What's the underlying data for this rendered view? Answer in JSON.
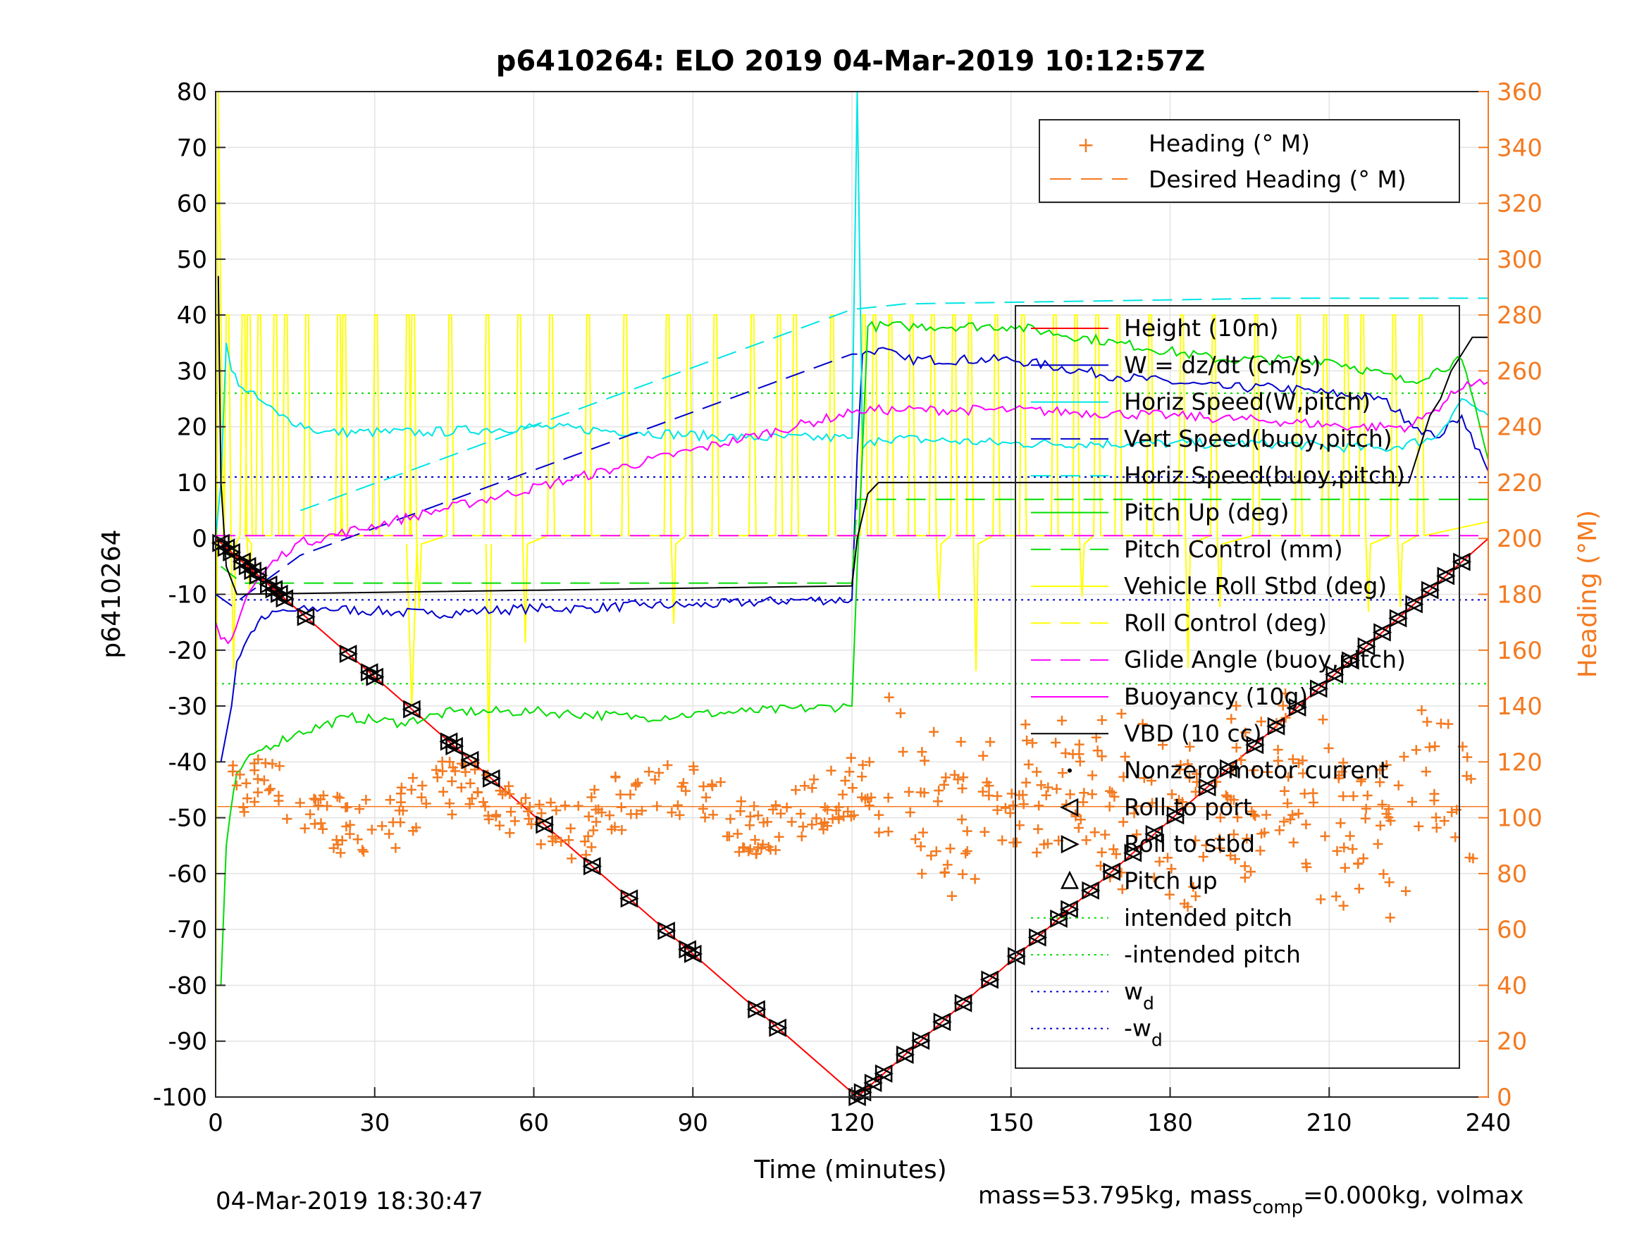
{
  "chart_data": {
    "type": "line",
    "title": "p6410264: ELO 2019 04-Mar-2019 10:12:57Z",
    "xlabel": "Time (minutes)",
    "ylabel": "p6410264",
    "ylabel_right": "Heading (°M)",
    "xlim": [
      0,
      240
    ],
    "ylim": [
      -100,
      80
    ],
    "ylim_right": [
      0,
      360
    ],
    "xticks": [
      "0",
      "30",
      "60",
      "90",
      "120",
      "150",
      "180",
      "210",
      "240"
    ],
    "yticks": [
      "80",
      "70",
      "60",
      "50",
      "40",
      "30",
      "20",
      "10",
      "0",
      "-10",
      "-20",
      "-30",
      "-40",
      "-50",
      "-60",
      "-70",
      "-80",
      "-90",
      "-100"
    ],
    "yticks_right": [
      "360",
      "340",
      "320",
      "300",
      "280",
      "260",
      "240",
      "220",
      "200",
      "180",
      "160",
      "140",
      "120",
      "100",
      "80",
      "60",
      "40",
      "20",
      "0"
    ],
    "grid": true,
    "footer_left": "04-Mar-2019 18:30:47",
    "footer_right": "mass=53.795kg, mass",
    "footer_right_sub": "comp",
    "footer_right_tail": "=0.000kg, volmax",
    "legend_heading": [
      {
        "name": "Heading (° M)",
        "color": "#f47a20",
        "style": "plus"
      },
      {
        "name": "Desired Heading (° M)",
        "color": "#f47a20",
        "style": "dashed"
      }
    ],
    "legend_main": [
      {
        "name": "Height (10m)",
        "color": "#ff0000",
        "style": "solid"
      },
      {
        "name": "W = dz/dt (cm/s)",
        "color": "#0000cc",
        "style": "solid"
      },
      {
        "name": "Horiz Speed(W,pitch)",
        "color": "#00e5e5",
        "style": "solid"
      },
      {
        "name": "Vert Speed(buoy,pitch)",
        "color": "#0000cc",
        "style": "dashed"
      },
      {
        "name": "Horiz Speed(buoy,pitch)",
        "color": "#00e5e5",
        "style": "dashed"
      },
      {
        "name": "Pitch Up (deg)",
        "color": "#00dd00",
        "style": "solid"
      },
      {
        "name": "Pitch Control (mm)",
        "color": "#00dd00",
        "style": "dashed"
      },
      {
        "name": "Vehicle Roll Stbd (deg)",
        "color": "#ffff00",
        "style": "solid"
      },
      {
        "name": "Roll Control (deg)",
        "color": "#ffff00",
        "style": "dashed"
      },
      {
        "name": "Glide Angle (buoy,pitch)",
        "color": "#ff00ff",
        "style": "dashed"
      },
      {
        "name": "Buoyancy (10g)",
        "color": "#ff00ff",
        "style": "solid"
      },
      {
        "name": "VBD (10 cc)",
        "color": "#000000",
        "style": "solid"
      },
      {
        "name": "Nonzero motor current",
        "color": "#000000",
        "style": "dot"
      },
      {
        "name": "Roll to port",
        "color": "#000000",
        "style": "tri-left"
      },
      {
        "name": "Roll to stbd",
        "color": "#000000",
        "style": "tri-right"
      },
      {
        "name": "Pitch up",
        "color": "#000000",
        "style": "tri-up"
      },
      {
        "name": "intended pitch",
        "color": "#00dd00",
        "style": "dotted"
      },
      {
        "name": "-intended pitch",
        "color": "#00dd00",
        "style": "dotted"
      },
      {
        "name": "w",
        "sub": "d",
        "color": "#0000cc",
        "style": "dotted"
      },
      {
        "name": "-w",
        "sub": "d",
        "color": "#0000cc",
        "style": "dotted"
      }
    ],
    "reference_lines": {
      "intended_pitch": 26,
      "w_d": 11,
      "desired_heading": 104
    },
    "series": [
      {
        "name": "Height (10m)",
        "color": "#ff0000",
        "x": [
          0,
          121,
          240
        ],
        "y": [
          0,
          -100,
          0
        ]
      },
      {
        "name": "W = dz/dt (cm/s)",
        "color": "#0000cc",
        "x": [
          1,
          2,
          3,
          4,
          6,
          8,
          10,
          12,
          15,
          20,
          30,
          40,
          50,
          60,
          70,
          80,
          90,
          100,
          110,
          120,
          121,
          122,
          125,
          130,
          150,
          170,
          190,
          200,
          210,
          220,
          225,
          230,
          235,
          240
        ],
        "y": [
          -40,
          -35,
          -30,
          -22,
          -18,
          -15,
          -14,
          -13,
          -13,
          -12.5,
          -13,
          -13.5,
          -13,
          -12.5,
          -12.5,
          -12,
          -12,
          -11.5,
          -11,
          -11,
          15,
          33,
          34,
          32,
          32,
          29,
          27,
          27,
          26,
          25,
          21,
          18,
          22,
          12
        ]
      },
      {
        "name": "Horiz Speed(W,pitch)",
        "color": "#00e5e5",
        "x": [
          0,
          1,
          2,
          3,
          5,
          8,
          12,
          20,
          40,
          60,
          80,
          100,
          120,
          121,
          122,
          125,
          150,
          180,
          200,
          220,
          230,
          235,
          240
        ],
        "y": [
          0,
          10,
          35,
          30,
          27,
          25,
          22,
          19,
          19,
          20,
          19,
          18,
          18,
          80,
          16,
          18,
          17,
          17,
          17,
          16,
          18,
          25,
          22
        ]
      },
      {
        "name": "Vert Speed(buoy,pitch)",
        "color": "#0000cc",
        "x": [
          0,
          3,
          16,
          120,
          121
        ],
        "y": [
          -10,
          -12,
          -3,
          33,
          33
        ]
      },
      {
        "name": "Horiz Speed(buoy,pitch)",
        "color": "#00e5e5",
        "x": [
          16,
          120,
          130,
          200,
          240
        ],
        "y": [
          5,
          41,
          42,
          43,
          43
        ]
      },
      {
        "name": "Pitch Up (deg)",
        "color": "#00dd00",
        "x": [
          1,
          2,
          4,
          8,
          15,
          25,
          35,
          45,
          60,
          80,
          100,
          120,
          121,
          123,
          130,
          150,
          170,
          190,
          210,
          225,
          235,
          240
        ],
        "y": [
          -80,
          -55,
          -42,
          -38,
          -35,
          -32,
          -33,
          -31,
          -31,
          -32,
          -31,
          -30,
          -5,
          38,
          38,
          38,
          35,
          32,
          32,
          28,
          32,
          14
        ]
      },
      {
        "name": "Pitch Control (mm)",
        "color": "#00dd00",
        "x": [
          1,
          5,
          40,
          120,
          121,
          125,
          240
        ],
        "y": [
          -5,
          -8,
          -8,
          -8,
          7,
          7,
          7
        ]
      },
      {
        "name": "Glide Angle (buoy,pitch)",
        "color": "#ff00ff",
        "x": [
          0,
          240
        ],
        "y": [
          0.5,
          0.5
        ]
      },
      {
        "name": "Buoyancy (10g)",
        "color": "#ff00ff",
        "x": [
          0,
          1,
          3,
          6,
          10,
          15,
          120,
          121,
          130,
          150,
          180,
          200,
          215,
          225,
          230,
          236,
          240
        ],
        "y": [
          -15,
          -18,
          -18,
          -10,
          -5,
          -1,
          22.5,
          23,
          23,
          23,
          22,
          21,
          20,
          20,
          23,
          28,
          28
        ]
      },
      {
        "name": "VBD (10 cc)",
        "color": "#000000",
        "x": [
          0.5,
          1,
          2,
          4,
          120,
          121,
          123,
          125,
          225,
          229,
          231,
          233,
          235,
          237,
          240
        ],
        "y": [
          47,
          10,
          -5,
          -10,
          -8.5,
          0,
          8,
          10,
          10,
          22,
          25,
          30,
          33,
          36,
          36
        ]
      }
    ],
    "roll_spikes_x": [
      2,
      5,
      6,
      8,
      11,
      13,
      17,
      23,
      24,
      30,
      36,
      37,
      44,
      51,
      57,
      63,
      70,
      77,
      85,
      89,
      94,
      101,
      106,
      109,
      116,
      122,
      124,
      127,
      131,
      135,
      139,
      142,
      147,
      152,
      158,
      162,
      166,
      170,
      176,
      182,
      188,
      196,
      204,
      209,
      213,
      216,
      222,
      227
    ],
    "marker_times": [
      1,
      2,
      3,
      5,
      6,
      7,
      8,
      10,
      11,
      12,
      13,
      17,
      25,
      29,
      30,
      37,
      44,
      45,
      48,
      52,
      62,
      71,
      78,
      85,
      89,
      90,
      102,
      106,
      121,
      122,
      124,
      126,
      130,
      133,
      137,
      141,
      146,
      151,
      155,
      159,
      161,
      165,
      169,
      173,
      177,
      181,
      187,
      191,
      196,
      200,
      204,
      208,
      211,
      214,
      217,
      220,
      223,
      226,
      229,
      232,
      235
    ],
    "heading_samples": 520
  }
}
